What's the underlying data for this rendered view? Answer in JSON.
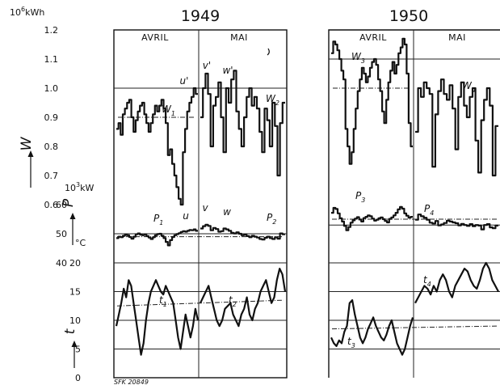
{
  "chart_data": [
    {
      "type": "line",
      "year": "1949",
      "months": [
        "AVRIL",
        "MAI"
      ],
      "series": [
        {
          "name": "W1",
          "label": "W",
          "sub": "1",
          "month": "AVRIL",
          "axis": "W",
          "step": true,
          "values": [
            0.86,
            0.88,
            0.84,
            0.91,
            0.93,
            0.95,
            0.96,
            0.9,
            0.85,
            0.89,
            0.92,
            0.94,
            0.95,
            0.91,
            0.88,
            0.85,
            0.88,
            0.91,
            0.94,
            0.92,
            0.94,
            0.96,
            0.93,
            0.88,
            0.77,
            0.79,
            0.74,
            0.7,
            0.66,
            0.62,
            0.6,
            0.78,
            0.86,
            0.92,
            0.95,
            0.97,
            1.0,
            0.98
          ]
        },
        {
          "name": "W2",
          "label": "W",
          "sub": "2",
          "month": "MAI",
          "axis": "W",
          "step": true,
          "values": [
            0.9,
            1.0,
            1.05,
            0.98,
            0.8,
            0.94,
            0.97,
            1.02,
            0.9,
            0.78,
            1.0,
            0.95,
            1.03,
            1.06,
            0.92,
            0.86,
            0.8,
            0.9,
            0.97,
            1.0,
            0.94,
            0.97,
            0.93,
            0.85,
            0.78,
            0.93,
            0.89,
            0.8,
            0.95,
            0.87,
            0.7,
            0.88,
            0.95
          ]
        },
        {
          "name": "P1",
          "label": "P",
          "sub": "1",
          "month": "AVRIL",
          "axis": "P",
          "step": true,
          "values": [
            48.5,
            49.0,
            48.8,
            49.3,
            49.6,
            49.5,
            48.9,
            48.3,
            49.0,
            49.8,
            50.1,
            49.7,
            49.5,
            49.8,
            49.2,
            48.7,
            48.2,
            48.8,
            49.5,
            49.9,
            50.0,
            49.3,
            48.5,
            47.2,
            46.0,
            47.8,
            48.9,
            49.5,
            49.9,
            50.2,
            50.6,
            50.9,
            50.7,
            51.0,
            51.3,
            51.2,
            51.5,
            51.0
          ]
        },
        {
          "name": "P2",
          "label": "P",
          "sub": "2",
          "month": "MAI",
          "axis": "P",
          "step": true,
          "values": [
            51.8,
            52.6,
            53.1,
            52.7,
            51.2,
            52.0,
            51.6,
            50.7,
            50.9,
            51.8,
            51.5,
            51.0,
            50.3,
            50.1,
            50.5,
            50.0,
            49.5,
            49.7,
            49.2,
            48.8,
            49.3,
            49.0,
            48.7,
            48.2,
            48.0,
            48.6,
            49.0,
            48.5,
            48.2,
            48.8,
            48.3,
            50.1,
            49.8
          ]
        },
        {
          "name": "t1",
          "label": "t",
          "sub": "1",
          "month": "AVRIL",
          "axis": "t",
          "values": [
            9,
            11,
            13,
            15.5,
            14,
            17,
            16,
            13,
            10,
            7,
            4,
            6,
            10,
            13,
            15,
            16,
            17,
            16,
            15,
            14.5,
            16,
            15,
            14,
            13,
            10,
            7,
            5,
            8,
            11,
            9,
            7,
            9,
            12,
            10
          ]
        },
        {
          "name": "t2",
          "label": "t",
          "sub": "2",
          "month": "MAI",
          "axis": "t",
          "values": [
            13,
            14,
            15,
            16,
            14,
            12,
            10,
            9,
            10,
            12,
            12.5,
            13,
            11,
            10,
            9,
            11,
            12,
            14,
            11,
            10,
            12,
            13,
            15,
            16,
            17,
            15,
            13,
            14,
            17,
            19,
            18,
            15
          ]
        }
      ],
      "refs": {
        "W": [
          1.0,
          0.9
        ],
        "P": [
          50,
          49
        ],
        "t_dash": [
          12.5,
          13.5
        ]
      },
      "annotations": [
        "u'",
        "v'",
        "w'",
        "u",
        "v",
        "w"
      ]
    },
    {
      "type": "line",
      "year": "1950",
      "months": [
        "AVRIL",
        "MAI"
      ],
      "series": [
        {
          "name": "W3",
          "label": "W",
          "sub": "3",
          "month": "AVRIL",
          "axis": "W",
          "step": true,
          "values": [
            1.12,
            1.16,
            1.15,
            1.13,
            1.1,
            1.06,
            1.03,
            0.86,
            0.8,
            0.74,
            0.78,
            0.86,
            0.93,
            0.99,
            1.03,
            1.07,
            1.05,
            1.02,
            1.04,
            1.07,
            1.09,
            1.1,
            1.08,
            1.03,
            0.99,
            0.92,
            0.88,
            0.96,
            1.02,
            1.06,
            1.09,
            1.05,
            1.08,
            1.12,
            1.14,
            1.17,
            1.15,
            1.05,
            0.88,
            0.8
          ]
        },
        {
          "name": "W4",
          "label": "W",
          "sub": "4",
          "month": "MAI",
          "axis": "W",
          "step": true,
          "values": [
            0.85,
            1.0,
            0.97,
            1.02,
            1.0,
            0.98,
            0.73,
            0.91,
            0.99,
            1.03,
            0.98,
            0.96,
            1.01,
            0.93,
            0.79,
            0.97,
            1.02,
            0.94,
            0.9,
            0.97,
            1.0,
            0.82,
            0.71,
            0.89,
            0.96,
            1.0,
            0.94,
            0.7,
            0.87
          ]
        },
        {
          "name": "P3",
          "label": "P",
          "sub": "3",
          "month": "AVRIL",
          "axis": "P",
          "step": true,
          "values": [
            57.2,
            58.9,
            58.5,
            57.0,
            55.3,
            54.2,
            52.7,
            51.2,
            52.3,
            53.8,
            54.6,
            55.2,
            55.7,
            54.9,
            54.2,
            55.4,
            55.8,
            56.3,
            56.0,
            55.2,
            54.5,
            54.8,
            55.3,
            55.6,
            55.0,
            54.4,
            53.9,
            55.1,
            55.6,
            56.3,
            57.2,
            58.4,
            59.2,
            58.6,
            57.0,
            56.2,
            55.5,
            55.8
          ]
        },
        {
          "name": "P4",
          "label": "P",
          "sub": "4",
          "month": "MAI",
          "axis": "P",
          "step": true,
          "values": [
            54.8,
            56.6,
            56.0,
            55.5,
            54.8,
            53.8,
            53.5,
            54.4,
            52.9,
            53.2,
            53.7,
            54.5,
            54.2,
            53.9,
            53.6,
            52.9,
            53.4,
            53.0,
            52.7,
            53.3,
            52.6,
            53.0,
            52.8,
            51.5,
            53.0,
            53.3,
            52.2,
            51.9,
            52.8
          ]
        },
        {
          "name": "t3",
          "label": "t",
          "sub": "3",
          "month": "AVRIL",
          "axis": "t",
          "values": [
            7,
            6,
            5.5,
            6.5,
            6,
            8,
            9,
            13,
            13.5,
            11,
            9,
            7,
            6,
            7,
            8.5,
            9.5,
            10.5,
            9,
            8,
            7,
            6.5,
            7.5,
            9,
            10,
            8,
            6,
            5,
            4,
            5,
            7,
            9,
            10.5
          ]
        },
        {
          "name": "t4",
          "label": "t",
          "sub": "4",
          "month": "MAI",
          "axis": "t",
          "values": [
            13,
            14,
            15,
            16,
            15.5,
            14.5,
            16,
            15,
            17,
            18,
            17,
            15,
            14,
            16,
            17,
            18,
            19,
            18.5,
            17,
            16,
            15.5,
            17,
            19,
            20,
            19,
            17,
            16,
            15
          ]
        }
      ],
      "refs": {
        "W": [
          1.1,
          1.0
        ],
        "P": [
          53,
          55
        ],
        "t_dash": [
          8.5,
          9
        ]
      },
      "annotations": []
    }
  ],
  "axes": {
    "W": {
      "letter": "W",
      "unit_mantissa": "10",
      "unit_exp": "6",
      "unit_suffix": "kWh",
      "ticks": [
        "1.2",
        "1.1",
        "1.0",
        "0.9",
        "0.8",
        "0.7",
        "0.6"
      ],
      "range": [
        0.6,
        1.2
      ]
    },
    "P": {
      "letter": "P",
      "unit_mantissa": "10",
      "unit_exp": "3",
      "unit_suffix": "kW",
      "ticks": [
        "60",
        "50",
        "40"
      ],
      "range": [
        40,
        60
      ]
    },
    "t": {
      "letter": "t",
      "unit": "°C",
      "ticks": [
        "20",
        "15",
        "10",
        "5",
        "0"
      ],
      "range": [
        0,
        20
      ]
    }
  },
  "source_code": "SFK 20849",
  "colors": {
    "ink": "#111111",
    "paper": "#ffffff"
  }
}
